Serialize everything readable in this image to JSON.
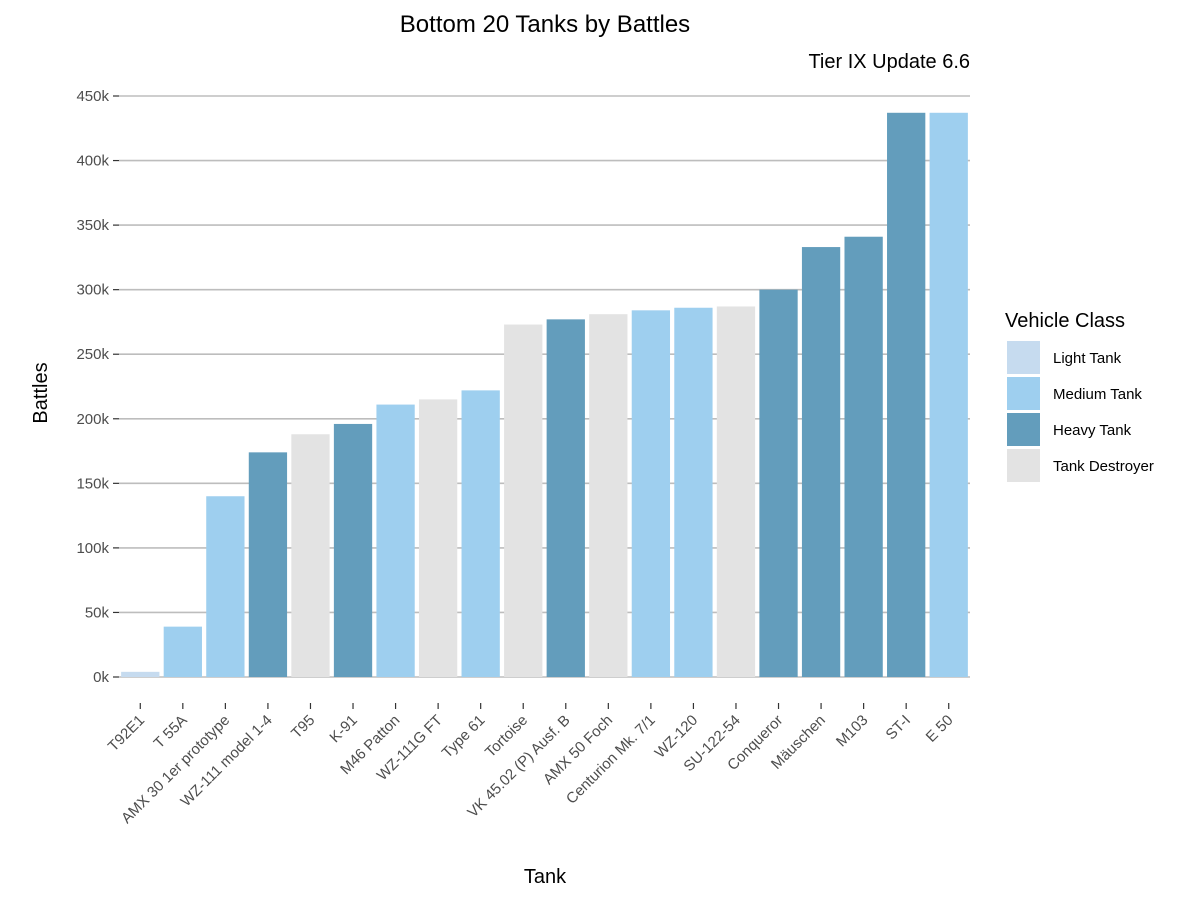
{
  "chart_data": {
    "type": "bar",
    "title": "Bottom 20 Tanks by Battles",
    "subtitle": "Tier IX Update 6.6",
    "xlabel": "Tank",
    "ylabel": "Battles",
    "ylim": [
      0,
      450000
    ],
    "yticks": [
      0,
      50000,
      100000,
      150000,
      200000,
      250000,
      300000,
      350000,
      400000,
      450000
    ],
    "ytick_labels": [
      "0k",
      "50k",
      "100k",
      "150k",
      "200k",
      "250k",
      "300k",
      "350k",
      "400k",
      "450k"
    ],
    "grid": "horizontal",
    "legend": {
      "title": "Vehicle Class",
      "position": "right",
      "entries": [
        {
          "label": "Light Tank",
          "color": "#c6dbef"
        },
        {
          "label": "Medium Tank",
          "color": "#9ecfef"
        },
        {
          "label": "Heavy Tank",
          "color": "#639dbc"
        },
        {
          "label": "Tank Destroyer",
          "color": "#e3e3e3"
        }
      ]
    },
    "categories": [
      "T92E1",
      "T 55A",
      "AMX 30 1er prototype",
      "WZ-111 model 1-4",
      "T95",
      "K-91",
      "M46 Patton",
      "WZ-111G FT",
      "Type 61",
      "Tortoise",
      "VK 45.02 (P) Ausf. B",
      "AMX 50 Foch",
      "Centurion Mk. 7/1",
      "WZ-120",
      "SU-122-54",
      "Conqueror",
      "Mäuschen",
      "M103",
      "ST-I",
      "E 50"
    ],
    "values": [
      4000,
      39000,
      140000,
      174000,
      188000,
      196000,
      211000,
      215000,
      222000,
      273000,
      277000,
      281000,
      284000,
      286000,
      287000,
      300000,
      333000,
      341000,
      437000,
      437000
    ],
    "classes": [
      "Light Tank",
      "Medium Tank",
      "Medium Tank",
      "Heavy Tank",
      "Tank Destroyer",
      "Heavy Tank",
      "Medium Tank",
      "Tank Destroyer",
      "Medium Tank",
      "Tank Destroyer",
      "Heavy Tank",
      "Tank Destroyer",
      "Medium Tank",
      "Medium Tank",
      "Tank Destroyer",
      "Heavy Tank",
      "Heavy Tank",
      "Heavy Tank",
      "Heavy Tank",
      "Medium Tank"
    ]
  }
}
